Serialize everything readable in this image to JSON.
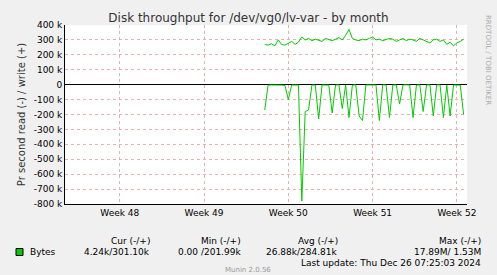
{
  "chart_data": {
    "type": "line",
    "title": "Disk throughput for /dev/vg0/lv-var - by month",
    "y_label": "Pr second read (-) / write (+)",
    "side_text": "RRDTOOL / TOBI OETIKER",
    "x": [
      49.72,
      49.76,
      49.8,
      49.84,
      49.88,
      49.92,
      49.96,
      50.0,
      50.04,
      50.08,
      50.12,
      50.16,
      50.2,
      50.24,
      50.28,
      50.32,
      50.36,
      50.4,
      50.44,
      50.48,
      50.52,
      50.56,
      50.6,
      50.64,
      50.68,
      50.72,
      50.76,
      50.8,
      50.84,
      50.88,
      50.92,
      50.96,
      51.0,
      51.04,
      51.08,
      51.12,
      51.16,
      51.2,
      51.24,
      51.28,
      51.32,
      51.36,
      51.4,
      51.44,
      51.48,
      51.52,
      51.56,
      51.6,
      51.64,
      51.68,
      51.72,
      51.76,
      51.8,
      51.84,
      51.88,
      51.92,
      51.96,
      52.0,
      52.04,
      52.08
    ],
    "series": [
      {
        "name": "Bytes",
        "color": "#00cc00",
        "values": [
          270000,
          265000,
          275000,
          260000,
          300000,
          270000,
          265000,
          280000,
          290000,
          270000,
          285000,
          320000,
          300000,
          310000,
          295000,
          305000,
          300000,
          290000,
          310000,
          300000,
          295000,
          305000,
          315000,
          300000,
          330000,
          370000,
          310000,
          300000,
          295000,
          305000,
          300000,
          310000,
          320000,
          300000,
          305000,
          295000,
          300000,
          310000,
          305000,
          290000,
          300000,
          310000,
          295000,
          305000,
          300000,
          290000,
          310000,
          300000,
          295000,
          280000,
          300000,
          305000,
          290000,
          300000,
          270000,
          285000,
          260000,
          280000,
          290000,
          305000
        ]
      },
      {
        "color": "#00cc00",
        "values": [
          -170000,
          -3000,
          -2000,
          -1000,
          -2000,
          -3000,
          -5000,
          -100000,
          -2000,
          -1000,
          -3000,
          -780000,
          -180000,
          -170000,
          -2000,
          -3000,
          -230000,
          -2000,
          -1000,
          -3000,
          -190000,
          -2000,
          -1000,
          -160000,
          -2000,
          -220000,
          -3000,
          -1000,
          -210000,
          -240000,
          -2000,
          -1000,
          -3000,
          -2000,
          -240000,
          -1000,
          -2000,
          -220000,
          -3000,
          -1000,
          -130000,
          -2000,
          -1000,
          -2000,
          -220000,
          -3000,
          -1000,
          -180000,
          -2000,
          -1000,
          -210000,
          -2000,
          -1000,
          -220000,
          -3000,
          -210000,
          -2000,
          -1000,
          -3000,
          -200000
        ]
      }
    ],
    "xlim": [
      47.35,
      52.12
    ],
    "xticks": [
      {
        "value": 48,
        "label": "Week 48"
      },
      {
        "value": 49,
        "label": "Week 49"
      },
      {
        "value": 50,
        "label": "Week 50"
      },
      {
        "value": 51,
        "label": "Week 51"
      },
      {
        "value": 52,
        "label": "Week 52"
      }
    ],
    "ylim": [
      -800000,
      400000
    ],
    "yticks": [
      {
        "value": -800000,
        "label": "-800 k"
      },
      {
        "value": -700000,
        "label": "-700 k"
      },
      {
        "value": -600000,
        "label": "-600 k"
      },
      {
        "value": -500000,
        "label": "-500 k"
      },
      {
        "value": -400000,
        "label": "-400 k"
      },
      {
        "value": -300000,
        "label": "-300 k"
      },
      {
        "value": -200000,
        "label": "-200 k"
      },
      {
        "value": -100000,
        "label": "-100 k"
      },
      0,
      {
        "value": 100000,
        "label": "100 k"
      },
      {
        "value": 200000,
        "label": "200 k"
      },
      {
        "value": 300000,
        "label": "300 k"
      },
      {
        "value": 400000,
        "label": "400 k"
      }
    ],
    "grid": true,
    "footer": {
      "header": [
        "Cur (-/+)",
        "Min (-/+)",
        "Avg (-/+)",
        "Max (-/+)"
      ],
      "row": [
        "4.24k/301.10k",
        "0.00 /201.99k",
        "26.88k/284.81k",
        "17.89M/ 1.53M"
      ],
      "last_update": "Last update: Thu Dec 26 07:25:03 2024",
      "credit": "Munin 2.0.56"
    }
  }
}
